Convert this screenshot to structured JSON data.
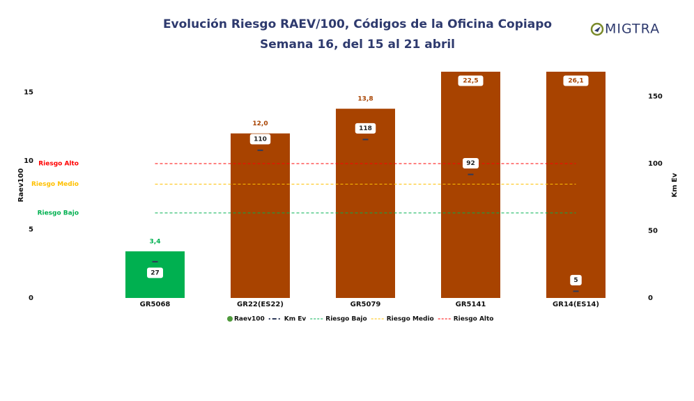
{
  "chart_data": {
    "type": "bar",
    "title": "Evolución Riesgo RAEV/100, Códigos de la Oficina Copiapo",
    "subtitle": "Semana 16, del 15 al 21 abril",
    "logo": "MIGTRA",
    "y_label": "Raev100",
    "y2_label": "Km Ev",
    "categories": [
      "GR5068",
      "GR22(ES22)",
      "GR5079",
      "GR5141",
      "GR14(ES14)"
    ],
    "series": [
      {
        "name": "Raev100",
        "color": "#4f9a3c",
        "bar_colors": [
          "#00b050",
          "#a84300",
          "#a84300",
          "#a84300",
          "#a84300"
        ],
        "values": [
          3.4,
          12.0,
          13.8,
          22.5,
          26.1
        ],
        "value_labels": [
          "3,4",
          "12,0",
          "13,8",
          "22,5",
          "26,1"
        ]
      },
      {
        "name": "Km Ev",
        "color": "#2f3a5a",
        "axis": "y2",
        "values": [
          27,
          110,
          118,
          92,
          5
        ]
      }
    ],
    "reference_lines": [
      {
        "name": "Riesgo Bajo",
        "color": "#00b050",
        "value": 6.2
      },
      {
        "name": "Riesgo Medio",
        "color": "#ffc000",
        "value": 8.3
      },
      {
        "name": "Riesgo Alto",
        "color": "#ff0000",
        "value": 9.8
      }
    ],
    "ylim": [
      0,
      16.5
    ],
    "yticks": [
      0,
      5,
      10,
      15
    ],
    "y2lim": [
      0,
      168.5
    ],
    "y2ticks": [
      0,
      50,
      100,
      150
    ]
  }
}
